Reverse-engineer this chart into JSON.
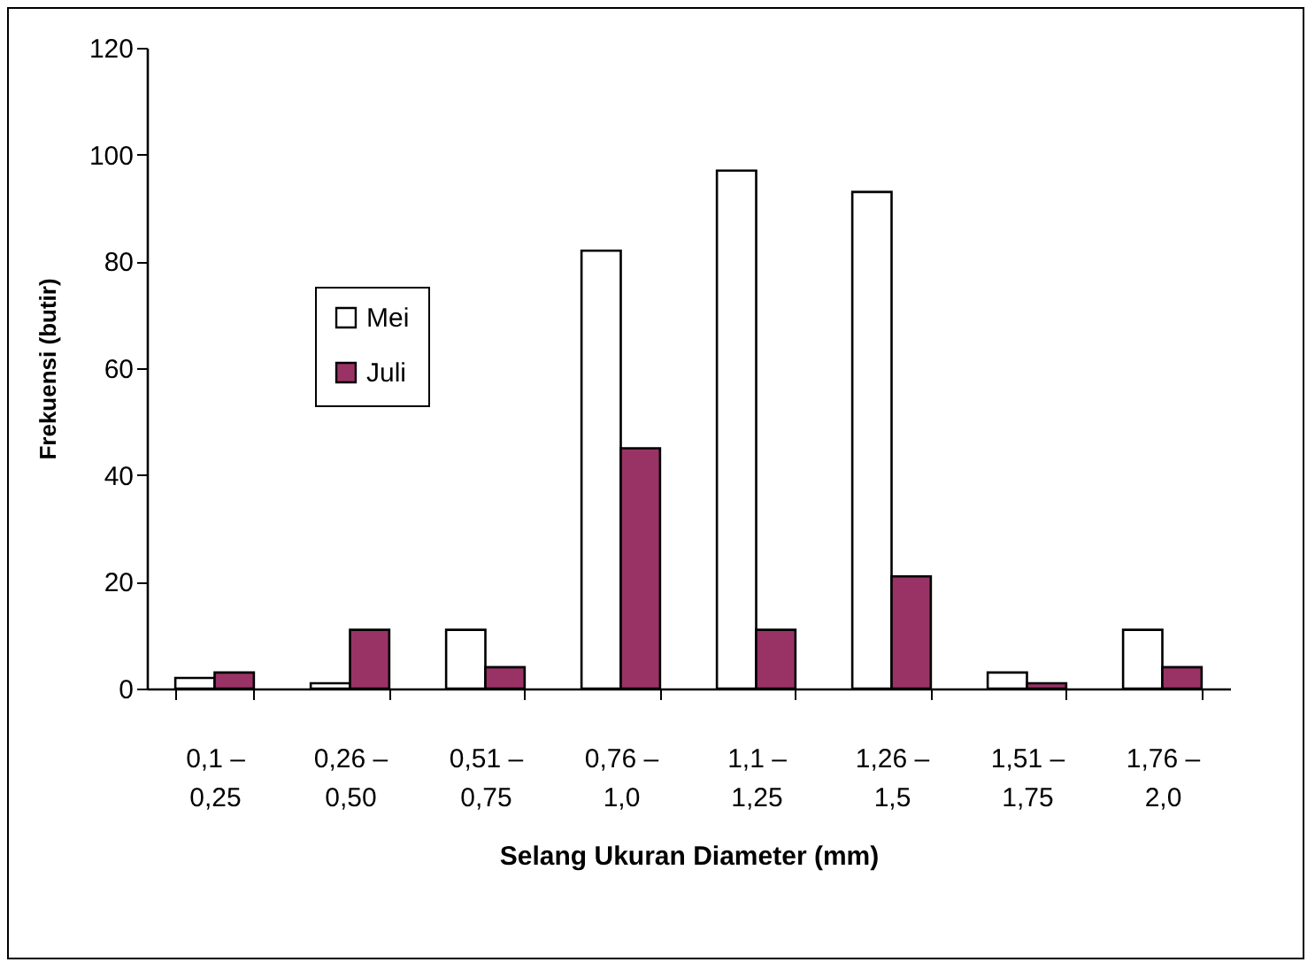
{
  "chart_data": {
    "type": "bar",
    "xlabel": "Selang Ukuran Diameter (mm)",
    "ylabel": "Frekuensi (butir)",
    "categories": [
      "0,1 –\n0,25",
      "0,26 –\n0,50",
      "0,51 –\n0,75",
      "0,76 –\n1,0",
      "1,1 –\n1,25",
      "1,26 –\n1,5",
      "1,51 –\n1,75",
      "1,76 –\n2,0"
    ],
    "series": [
      {
        "name": "Mei",
        "color": "#ffffff",
        "values": [
          2,
          1,
          11,
          82,
          97,
          93,
          3,
          11
        ]
      },
      {
        "name": "Juli",
        "color": "#993366",
        "values": [
          3,
          11,
          4,
          45,
          11,
          21,
          1,
          4
        ]
      }
    ],
    "ylim": [
      0,
      120
    ],
    "yticks": [
      0,
      20,
      40,
      60,
      80,
      100,
      120
    ],
    "grid": false,
    "legend": "left"
  }
}
